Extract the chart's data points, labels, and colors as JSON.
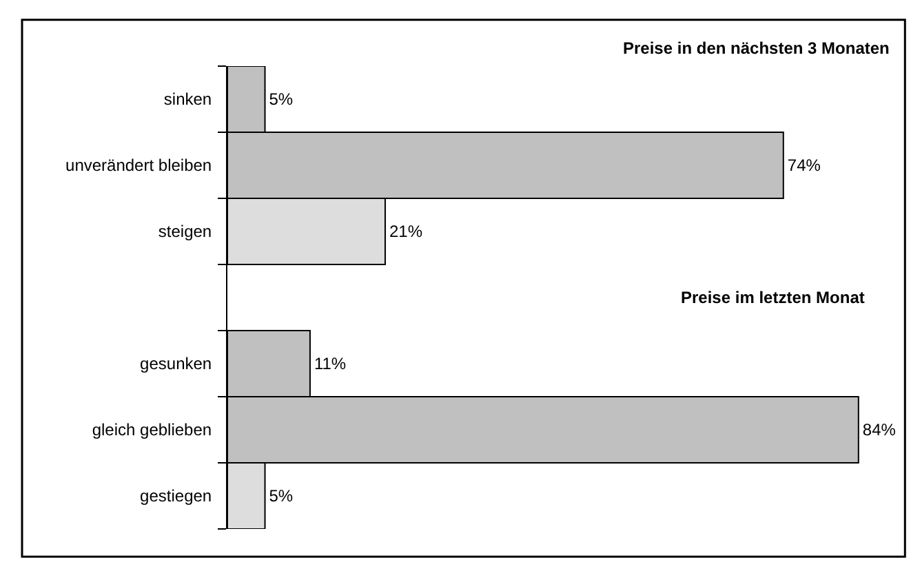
{
  "chart_data": {
    "type": "bar",
    "orientation": "horizontal",
    "categories": [
      "sinken",
      "unverändert bleiben",
      "steigen",
      null,
      "gesunken",
      "gleich geblieben",
      "gestiegen"
    ],
    "values": [
      5,
      74,
      21,
      null,
      11,
      84,
      5
    ],
    "colors": [
      "#c0c0c0",
      "#c0c0c0",
      "#dddddd",
      null,
      "#c0c0c0",
      "#c0c0c0",
      "#dddddd"
    ],
    "value_labels": [
      "5%",
      "74%",
      "21%",
      null,
      "11%",
      "84%",
      "5%"
    ],
    "annotations": [
      "Preise in den nächsten 3 Monaten",
      "Preise im letzten Monat"
    ],
    "legend": false
  }
}
